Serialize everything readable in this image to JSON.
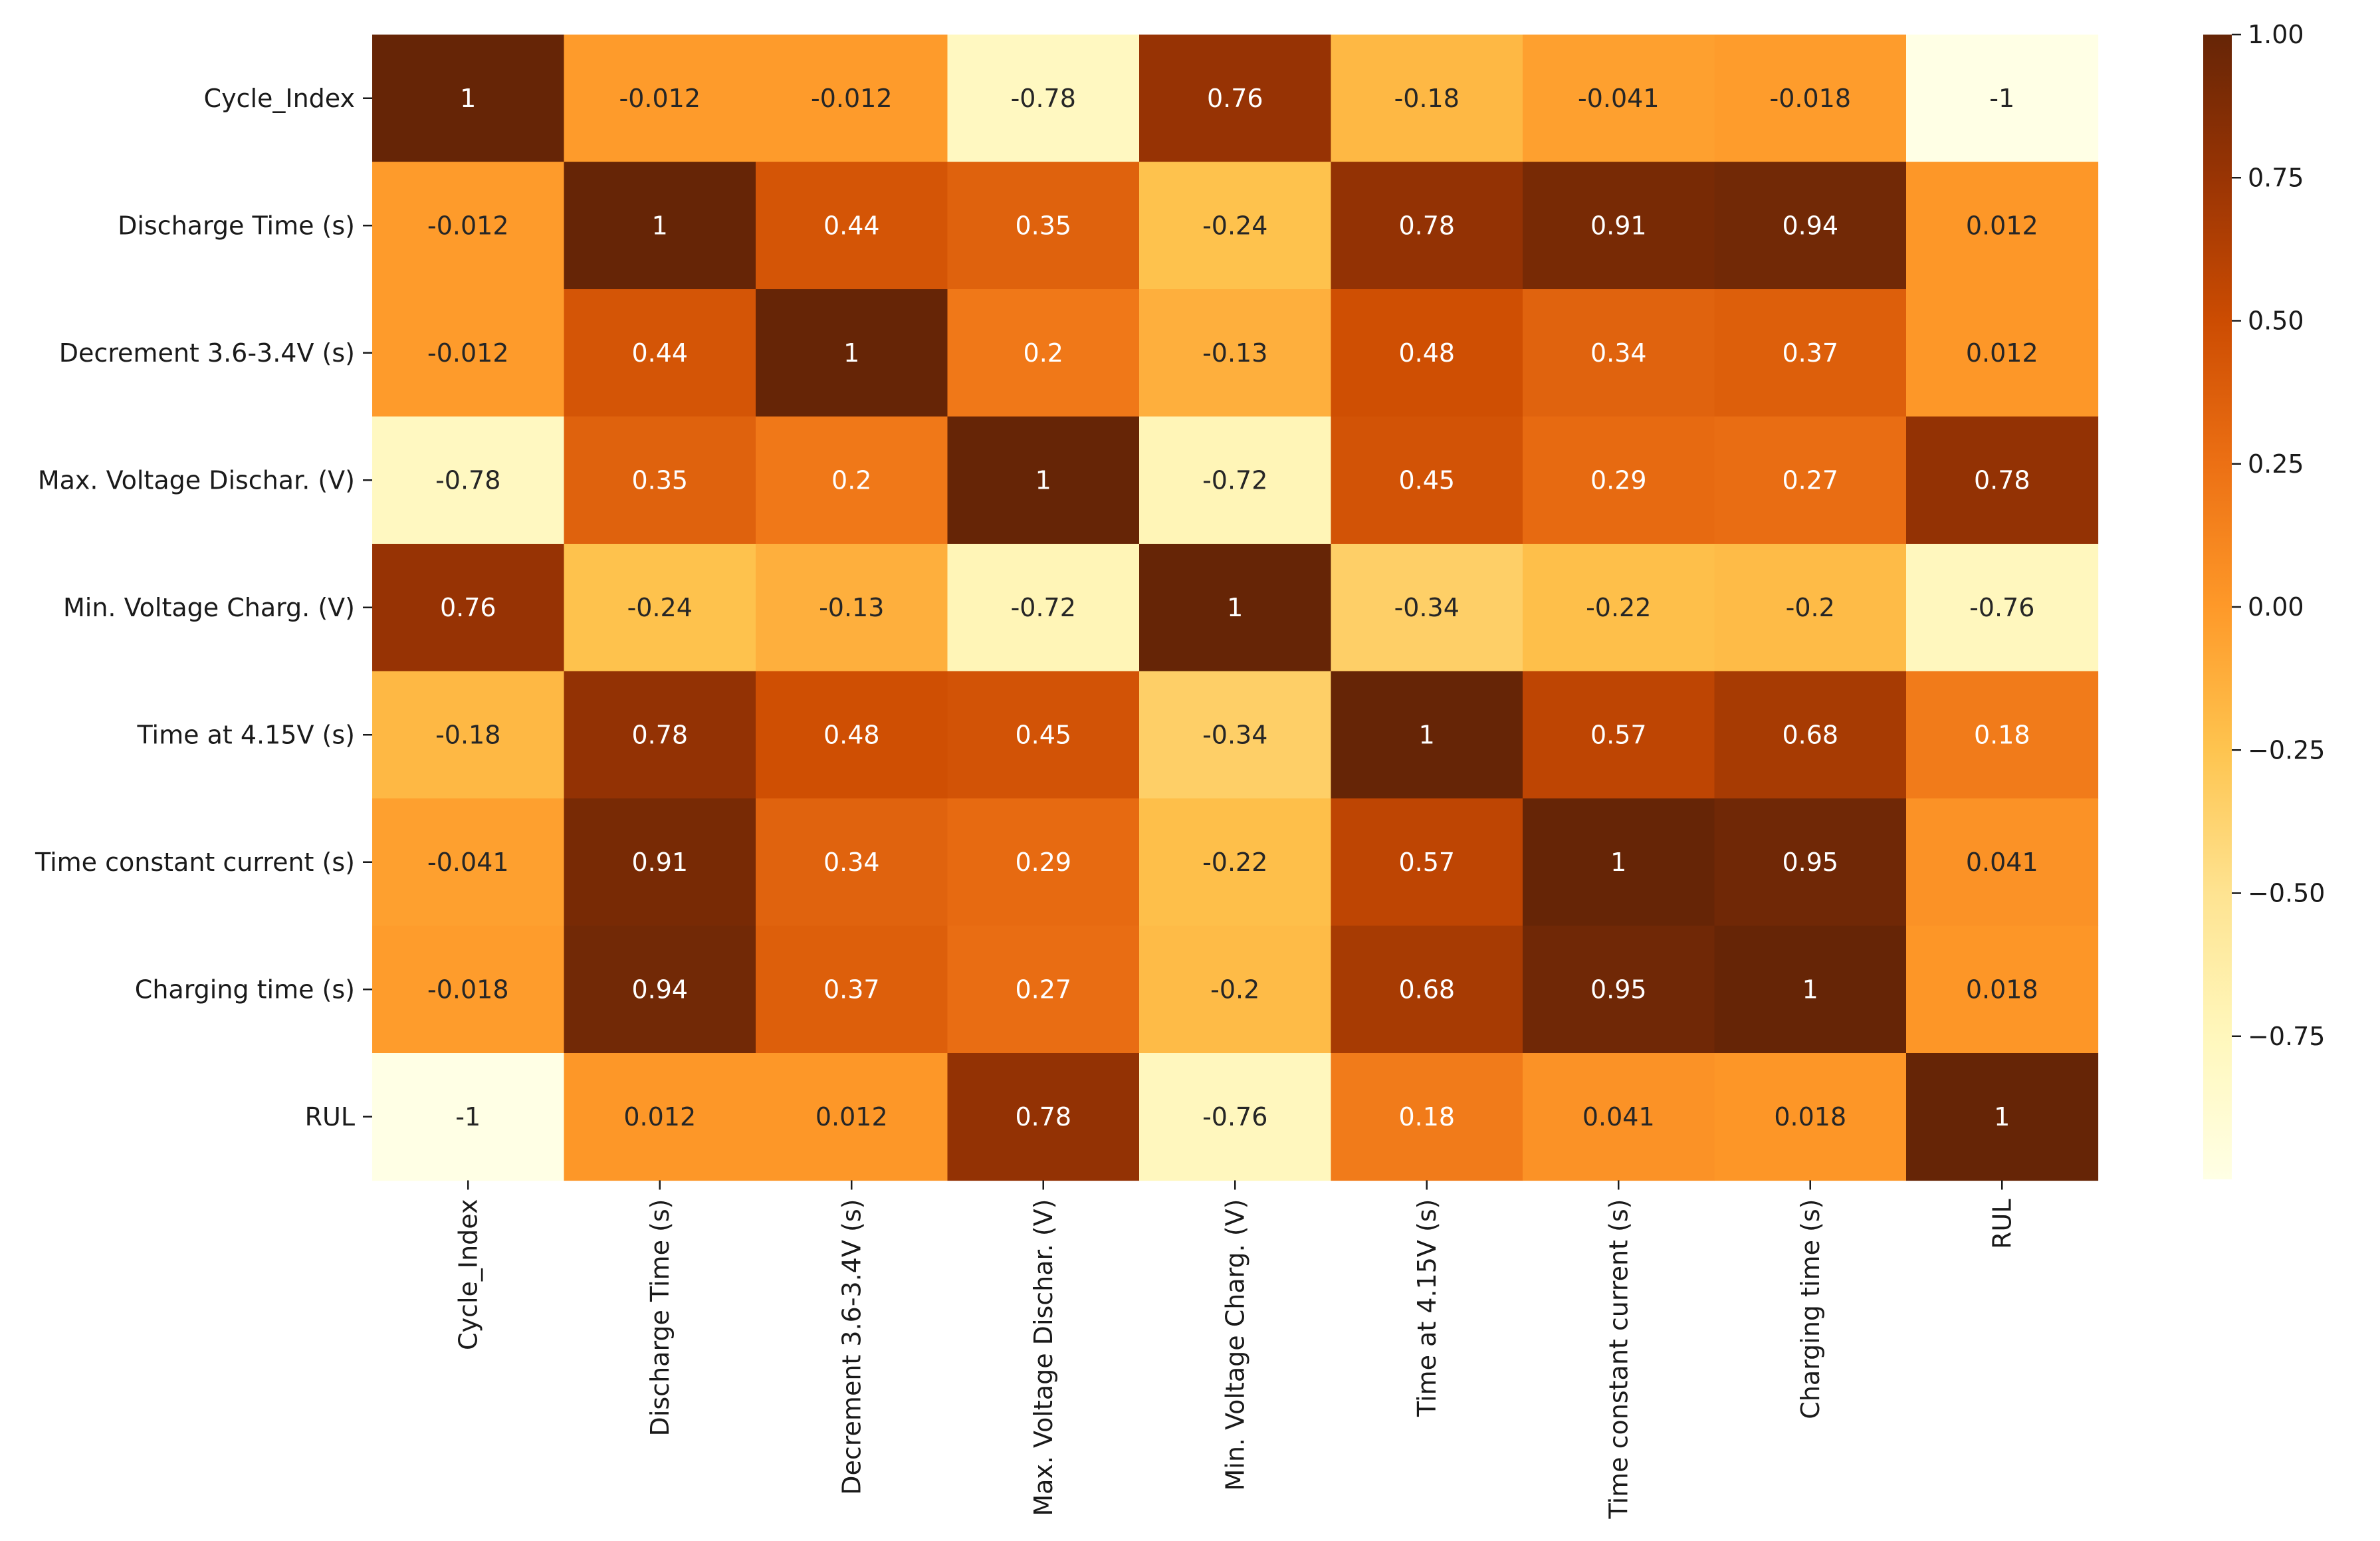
{
  "chart_data": {
    "type": "heatmap",
    "title": "",
    "xlabel": "",
    "ylabel": "",
    "variables": [
      "Cycle_Index",
      "Discharge Time (s)",
      "Decrement 3.6-3.4V (s)",
      "Max. Voltage Dischar. (V)",
      "Min. Voltage Charg. (V)",
      "Time at 4.15V (s)",
      "Time constant current (s)",
      "Charging time (s)",
      "RUL"
    ],
    "values": [
      [
        1,
        -0.012,
        -0.012,
        -0.78,
        0.76,
        -0.18,
        -0.041,
        -0.018,
        -1
      ],
      [
        -0.012,
        1,
        0.44,
        0.35,
        -0.24,
        0.78,
        0.91,
        0.94,
        0.012
      ],
      [
        -0.012,
        0.44,
        1,
        0.2,
        -0.13,
        0.48,
        0.34,
        0.37,
        0.012
      ],
      [
        -0.78,
        0.35,
        0.2,
        1,
        -0.72,
        0.45,
        0.29,
        0.27,
        0.78
      ],
      [
        0.76,
        -0.24,
        -0.13,
        -0.72,
        1,
        -0.34,
        -0.22,
        -0.2,
        -0.76
      ],
      [
        -0.18,
        0.78,
        0.48,
        0.45,
        -0.34,
        1,
        0.57,
        0.68,
        0.18
      ],
      [
        -0.041,
        0.91,
        0.34,
        0.29,
        -0.22,
        0.57,
        1,
        0.95,
        0.041
      ],
      [
        -0.018,
        0.94,
        0.37,
        0.27,
        -0.2,
        0.68,
        0.95,
        1,
        0.018
      ],
      [
        -1,
        0.012,
        0.012,
        0.78,
        -0.76,
        0.18,
        0.041,
        0.018,
        1
      ]
    ],
    "cell_labels": [
      [
        "1",
        "-0.012",
        "-0.012",
        "-0.78",
        "0.76",
        "-0.18",
        "-0.041",
        "-0.018",
        "-1"
      ],
      [
        "-0.012",
        "1",
        "0.44",
        "0.35",
        "-0.24",
        "0.78",
        "0.91",
        "0.94",
        "0.012"
      ],
      [
        "-0.012",
        "0.44",
        "1",
        "0.2",
        "-0.13",
        "0.48",
        "0.34",
        "0.37",
        "0.012"
      ],
      [
        "-0.78",
        "0.35",
        "0.2",
        "1",
        "-0.72",
        "0.45",
        "0.29",
        "0.27",
        "0.78"
      ],
      [
        "0.76",
        "-0.24",
        "-0.13",
        "-0.72",
        "1",
        "-0.34",
        "-0.22",
        "-0.2",
        "-0.76"
      ],
      [
        "-0.18",
        "0.78",
        "0.48",
        "0.45",
        "-0.34",
        "1",
        "0.57",
        "0.68",
        "0.18"
      ],
      [
        "-0.041",
        "0.91",
        "0.34",
        "0.29",
        "-0.22",
        "0.57",
        "1",
        "0.95",
        "0.041"
      ],
      [
        "-0.018",
        "0.94",
        "0.37",
        "0.27",
        "-0.2",
        "0.68",
        "0.95",
        "1",
        "0.018"
      ],
      [
        "-1",
        "0.012",
        "0.012",
        "0.78",
        "-0.76",
        "0.18",
        "0.041",
        "0.018",
        "1"
      ]
    ],
    "colorbar": {
      "colormap": "YlOrBr",
      "vmin": -1,
      "vmax": 1,
      "ticks": [
        1.0,
        0.75,
        0.5,
        0.25,
        0.0,
        -0.25,
        -0.5,
        -0.75
      ],
      "tick_labels": [
        "1.00",
        "0.75",
        "0.50",
        "0.25",
        "0.00",
        "−0.25",
        "−0.50",
        "−0.75"
      ],
      "stops": [
        "#ffffe5",
        "#fff7bc",
        "#fee391",
        "#fec44f",
        "#fe9929",
        "#ec7014",
        "#cc4c02",
        "#993404",
        "#662506"
      ]
    }
  }
}
